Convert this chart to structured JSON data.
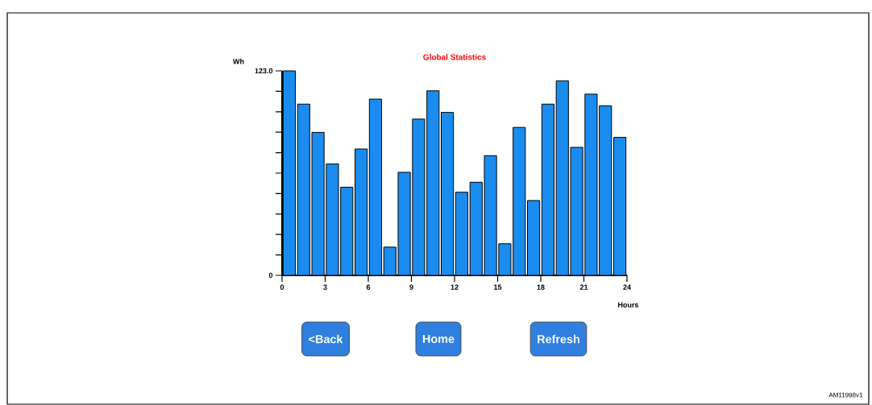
{
  "chart_data": {
    "type": "bar",
    "title": "Global Statistics",
    "xlabel": "Hours",
    "ylabel": "Wh",
    "x": [
      0.5,
      1.5,
      2.5,
      3.5,
      4.5,
      5.5,
      6.5,
      7.5,
      8.5,
      9.5,
      10.5,
      11.5,
      12.5,
      13.5,
      14.5,
      15.5,
      16.5,
      17.5,
      18.5,
      19.5,
      20.5,
      21.5,
      22.5,
      23.5
    ],
    "values": [
      123,
      103,
      86,
      67,
      53,
      76,
      106,
      17,
      62,
      94,
      111,
      98,
      50,
      56,
      72,
      19,
      89,
      45,
      103,
      117,
      77,
      109,
      102,
      83
    ],
    "color": "#1a8cf0",
    "xlim": [
      0,
      24
    ],
    "xticks": [
      0,
      3,
      6,
      9,
      12,
      15,
      18,
      21,
      24
    ],
    "ylim": [
      0,
      123.0
    ],
    "yticks": [
      {
        "value": 0,
        "label": "0"
      },
      {
        "value": 12.3,
        "label": null
      },
      {
        "value": 24.6,
        "label": null
      },
      {
        "value": 36.9,
        "label": null
      },
      {
        "value": 49.2,
        "label": null
      },
      {
        "value": 61.5,
        "label": null
      },
      {
        "value": 73.8,
        "label": null
      },
      {
        "value": 86.1,
        "label": null
      },
      {
        "value": 98.4,
        "label": null
      },
      {
        "value": 110.7,
        "label": null
      },
      {
        "value": 123.0,
        "label": "123.0"
      }
    ],
    "annotations": [
      "<Back",
      "Home",
      "Refresh",
      "AM11998v1"
    ]
  }
}
